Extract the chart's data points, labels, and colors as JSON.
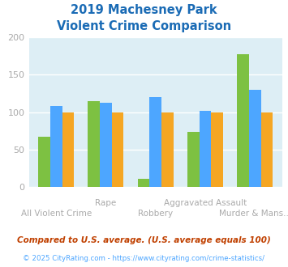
{
  "title_line1": "2019 Machesney Park",
  "title_line2": "Violent Crime Comparison",
  "title_color": "#1a6bb5",
  "categories_top": [
    "",
    "Rape",
    "",
    "Aggravated Assault",
    ""
  ],
  "categories_bottom": [
    "All Violent Crime",
    "",
    "Robbery",
    "",
    "Murder & Mans..."
  ],
  "series": {
    "Machesney Park": [
      67,
      115,
      11,
      74,
      178
    ],
    "Illinois": [
      108,
      113,
      120,
      102,
      130
    ],
    "National": [
      100,
      100,
      100,
      100,
      100
    ]
  },
  "colors": {
    "Machesney Park": "#7dc142",
    "Illinois": "#4da6ff",
    "National": "#f5a623"
  },
  "ylim": [
    0,
    200
  ],
  "yticks": [
    0,
    50,
    100,
    150,
    200
  ],
  "background_color": "#ddeef5",
  "grid_color": "#ffffff",
  "xlabel_fontsize": 7.5,
  "ylabel_fontsize": 8,
  "legend_fontsize": 8.5,
  "footnote1": "Compared to U.S. average. (U.S. average equals 100)",
  "footnote2": "© 2025 CityRating.com - https://www.cityrating.com/crime-statistics/",
  "footnote1_color": "#c04000",
  "footnote2_color": "#4da6ff"
}
